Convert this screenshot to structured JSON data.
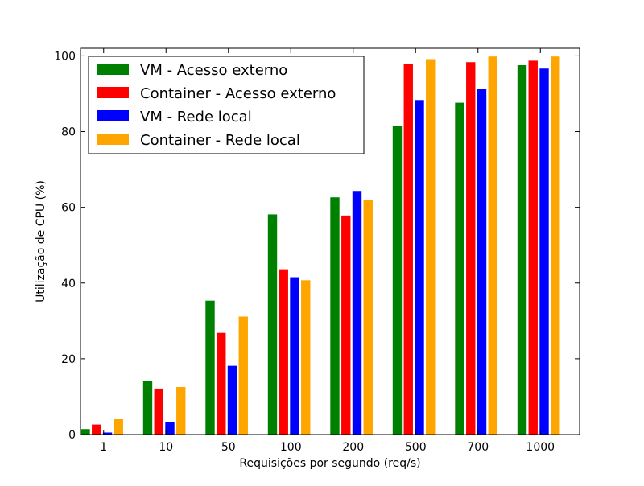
{
  "chart_data": {
    "type": "bar",
    "title": "",
    "xlabel": "Requisições por segundo (req/s)",
    "ylabel": "Utilização de CPU (%)",
    "categories": [
      "1",
      "10",
      "50",
      "100",
      "200",
      "500",
      "700",
      "1000"
    ],
    "ylim": [
      0,
      102
    ],
    "yticks": [
      0,
      20,
      40,
      60,
      80,
      100
    ],
    "grid": false,
    "legend_position": "top-left",
    "series": [
      {
        "name": "VM - Acesso externo",
        "color": "#008000",
        "values": [
          1.5,
          14.3,
          35.4,
          58.2,
          62.7,
          81.6,
          87.7,
          97.6
        ]
      },
      {
        "name": "Container - Acesso externo",
        "color": "#ff0000",
        "values": [
          2.7,
          12.2,
          26.9,
          43.7,
          57.9,
          98.0,
          98.4,
          98.8
        ]
      },
      {
        "name": "VM - Rede local",
        "color": "#0000ff",
        "values": [
          0.6,
          3.4,
          18.2,
          41.6,
          64.4,
          88.4,
          91.4,
          96.7
        ]
      },
      {
        "name": "Container - Rede local",
        "color": "#ffa500",
        "values": [
          4.1,
          12.6,
          31.2,
          40.8,
          62.0,
          99.2,
          99.9,
          99.9
        ]
      }
    ]
  }
}
